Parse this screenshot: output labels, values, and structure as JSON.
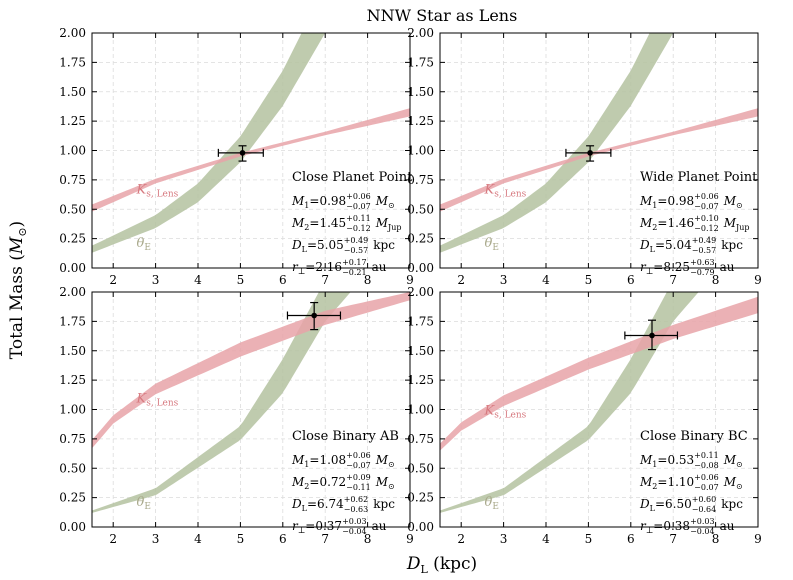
{
  "figure": {
    "title": "NNW Star as Lens",
    "xlabel_main": "D",
    "xlabel_sub": "L",
    "xlabel_unit": " (kpc)",
    "ylabel_main": "Total Mass (",
    "ylabel_sym": "M",
    "ylabel_sub": "⊙",
    "ylabel_close": ")"
  },
  "axes": {
    "xlim": [
      1.5,
      9
    ],
    "ylim": [
      0,
      2
    ],
    "x_ticks": [
      2,
      3,
      4,
      5,
      6,
      7,
      8,
      9
    ],
    "x_tick_labels": [
      "2",
      "3",
      "4",
      "5",
      "6",
      "7",
      "8",
      "9"
    ],
    "y_ticks": [
      0,
      0.25,
      0.5,
      0.75,
      1.0,
      1.25,
      1.5,
      1.75,
      2.0
    ],
    "y_tick_labels": [
      "0.00",
      "0.25",
      "0.50",
      "0.75",
      "1.00",
      "1.25",
      "1.50",
      "1.75",
      "2.00"
    ],
    "grid": true
  },
  "band_labels": {
    "ks_main": "K",
    "ks_sub": "s, Lens",
    "theta_main": "θ",
    "theta_sub": "E"
  },
  "colors": {
    "ks_band": "#e8a3a8",
    "theta_band": "#b4c2a0",
    "ks_label": "#d77a80",
    "theta_label": "#a8a88a",
    "grid": "#dcdcdc"
  },
  "chart_data": [
    {
      "type": "area",
      "panel": "Close Planet Point",
      "measurement": {
        "x": 5.05,
        "y": 0.98,
        "x_err": [
          0.57,
          0.49
        ],
        "y_err": [
          0.07,
          0.06
        ]
      },
      "ks_band": {
        "x": [
          1.5,
          3,
          5,
          7,
          9
        ],
        "lower": [
          0.48,
          0.72,
          0.95,
          1.13,
          1.29
        ],
        "upper": [
          0.54,
          0.76,
          0.98,
          1.16,
          1.36
        ]
      },
      "theta_band": {
        "x": [
          1.5,
          3,
          4,
          5,
          6,
          7
        ],
        "lower": [
          0.13,
          0.34,
          0.56,
          0.9,
          1.38,
          2.0
        ],
        "upper": [
          0.19,
          0.45,
          0.72,
          1.12,
          1.68,
          2.4
        ]
      },
      "params": [
        {
          "sym": "M",
          "sub": "1",
          "val": "=0.98",
          "up": "+0.06",
          "lo": "−0.07",
          "unit": "M",
          "unit_sub": "⊙"
        },
        {
          "sym": "M",
          "sub": "2",
          "val": "=1.45",
          "up": "+0.11",
          "lo": "−0.12",
          "unit": "M",
          "unit_sub": "Jup"
        },
        {
          "sym": "D",
          "sub": "L",
          "val": "=5.05",
          "up": "+0.49",
          "lo": "−0.57",
          "unit": "kpc",
          "unit_sub": ""
        },
        {
          "sym": "r",
          "sub": "⊥",
          "val": "=2.16",
          "up": "+0.17",
          "lo": "−0.21",
          "unit": "au",
          "unit_sub": ""
        }
      ]
    },
    {
      "type": "area",
      "panel": "Wide Planet Point",
      "measurement": {
        "x": 5.04,
        "y": 0.98,
        "x_err": [
          0.57,
          0.49
        ],
        "y_err": [
          0.07,
          0.06
        ]
      },
      "ks_band": {
        "x": [
          1.5,
          3,
          5,
          7,
          9
        ],
        "lower": [
          0.48,
          0.72,
          0.95,
          1.13,
          1.29
        ],
        "upper": [
          0.54,
          0.76,
          0.98,
          1.16,
          1.36
        ]
      },
      "theta_band": {
        "x": [
          1.5,
          3,
          4,
          5,
          6,
          7
        ],
        "lower": [
          0.13,
          0.34,
          0.56,
          0.9,
          1.38,
          2.0
        ],
        "upper": [
          0.19,
          0.45,
          0.72,
          1.12,
          1.68,
          2.4
        ]
      },
      "params": [
        {
          "sym": "M",
          "sub": "1",
          "val": "=0.98",
          "up": "+0.06",
          "lo": "−0.07",
          "unit": "M",
          "unit_sub": "⊙"
        },
        {
          "sym": "M",
          "sub": "2",
          "val": "=1.46",
          "up": "+0.10",
          "lo": "−0.12",
          "unit": "M",
          "unit_sub": "Jup"
        },
        {
          "sym": "D",
          "sub": "L",
          "val": "=5.04",
          "up": "+0.49",
          "lo": "−0.57",
          "unit": "kpc",
          "unit_sub": ""
        },
        {
          "sym": "r",
          "sub": "⊥",
          "val": "=8.25",
          "up": "+0.63",
          "lo": "−0.79",
          "unit": "au",
          "unit_sub": ""
        }
      ]
    },
    {
      "type": "area",
      "panel": "Close Binary AB",
      "measurement": {
        "x": 6.74,
        "y": 1.8,
        "x_err": [
          0.63,
          0.62
        ],
        "y_err": [
          0.12,
          0.11
        ]
      },
      "ks_band": {
        "x": [
          1.5,
          2,
          3,
          5,
          7,
          9
        ],
        "lower": [
          0.67,
          0.88,
          1.13,
          1.45,
          1.72,
          1.93
        ],
        "upper": [
          0.74,
          0.95,
          1.22,
          1.57,
          1.84,
          2.0
        ]
      },
      "theta_band": {
        "x": [
          1.5,
          3,
          5,
          6,
          7,
          7.6
        ],
        "lower": [
          0.12,
          0.27,
          0.74,
          1.14,
          1.75,
          2.0
        ],
        "upper": [
          0.14,
          0.33,
          0.86,
          1.43,
          2.1,
          2.4
        ]
      },
      "params": [
        {
          "sym": "M",
          "sub": "1",
          "val": "=1.08",
          "up": "+0.06",
          "lo": "−0.07",
          "unit": "M",
          "unit_sub": "⊙"
        },
        {
          "sym": "M",
          "sub": "2",
          "val": "=0.72",
          "up": "+0.09",
          "lo": "−0.11",
          "unit": "M",
          "unit_sub": "⊙"
        },
        {
          "sym": "D",
          "sub": "L",
          "val": "=6.74",
          "up": "+0.62",
          "lo": "−0.63",
          "unit": "kpc",
          "unit_sub": ""
        },
        {
          "sym": "r",
          "sub": "⊥",
          "val": "=0.37",
          "up": "+0.03",
          "lo": "−0.04",
          "unit": "au",
          "unit_sub": ""
        }
      ]
    },
    {
      "type": "area",
      "panel": "Close Binary BC",
      "measurement": {
        "x": 6.5,
        "y": 1.63,
        "x_err": [
          0.64,
          0.6
        ],
        "y_err": [
          0.12,
          0.13
        ]
      },
      "ks_band": {
        "x": [
          1.5,
          2,
          3,
          5,
          7,
          9
        ],
        "lower": [
          0.65,
          0.82,
          1.03,
          1.34,
          1.6,
          1.82
        ],
        "upper": [
          0.71,
          0.89,
          1.12,
          1.44,
          1.72,
          1.96
        ]
      },
      "theta_band": {
        "x": [
          1.5,
          3,
          5,
          6,
          7,
          7.6
        ],
        "lower": [
          0.12,
          0.27,
          0.74,
          1.14,
          1.75,
          2.0
        ],
        "upper": [
          0.14,
          0.33,
          0.86,
          1.43,
          2.1,
          2.4
        ]
      },
      "params": [
        {
          "sym": "M",
          "sub": "1",
          "val": "=0.53",
          "up": "+0.11",
          "lo": "−0.08",
          "unit": "M",
          "unit_sub": "⊙"
        },
        {
          "sym": "M",
          "sub": "2",
          "val": "=1.10",
          "up": "+0.06",
          "lo": "−0.07",
          "unit": "M",
          "unit_sub": "⊙"
        },
        {
          "sym": "D",
          "sub": "L",
          "val": "=6.50",
          "up": "+0.60",
          "lo": "−0.64",
          "unit": "kpc",
          "unit_sub": ""
        },
        {
          "sym": "r",
          "sub": "⊥",
          "val": "=0.38",
          "up": "+0.03",
          "lo": "−0.04",
          "unit": "au",
          "unit_sub": ""
        }
      ]
    }
  ]
}
